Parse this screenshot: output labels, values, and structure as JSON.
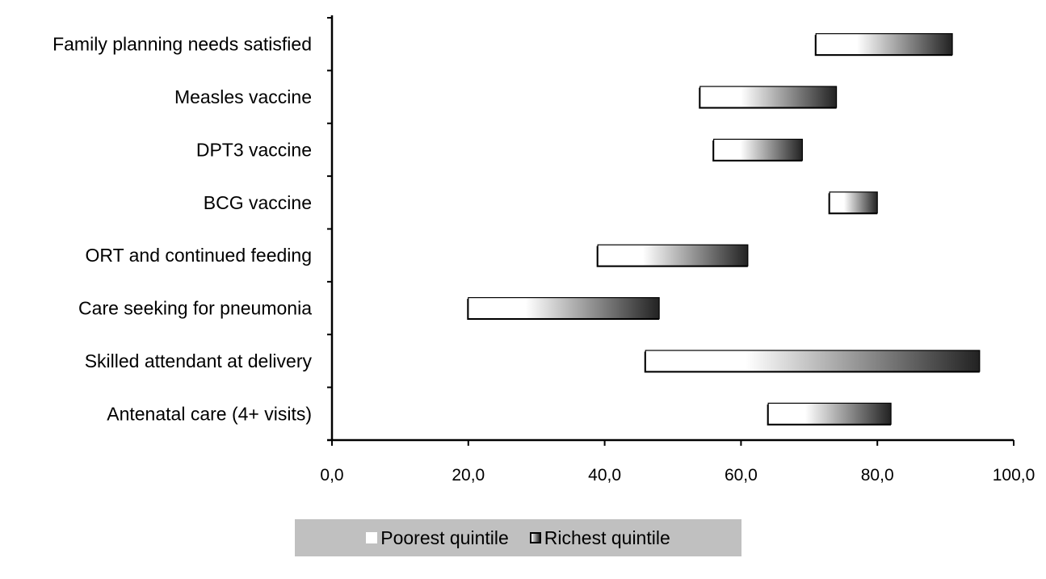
{
  "chart_data": {
    "type": "bar",
    "orientation": "horizontal-range",
    "categories": [
      "Family planning needs satisfied",
      "Measles vaccine",
      "DPT3 vaccine",
      "BCG vaccine",
      "ORT and continued feeding",
      "Care seeking for pneumonia",
      "Skilled attendant at delivery",
      "Antenatal care (4+ visits)"
    ],
    "series": [
      {
        "name": "Poorest quintile",
        "values": [
          71.0,
          54.0,
          56.0,
          73.0,
          39.0,
          20.0,
          46.0,
          64.0
        ]
      },
      {
        "name": "Richest quintile",
        "values": [
          91.0,
          74.0,
          69.0,
          80.0,
          61.0,
          48.0,
          95.0,
          82.0
        ]
      }
    ],
    "xlim": [
      0,
      100
    ],
    "x_ticks": [
      0,
      20,
      40,
      60,
      80,
      100
    ],
    "x_tick_labels": [
      "0,0",
      "20,0",
      "40,0",
      "60,0",
      "80,0",
      "100,0"
    ],
    "title": "",
    "xlabel": "",
    "ylabel": "",
    "grid": false,
    "legend_position": "bottom"
  },
  "legend": {
    "poorest_label": "Poorest quintile",
    "richest_label": "Richest quintile"
  },
  "colors": {
    "bar_start": "#ffffff",
    "bar_end": "#222222",
    "bar_border": "#000000",
    "legend_background": "#c0c0c0"
  }
}
